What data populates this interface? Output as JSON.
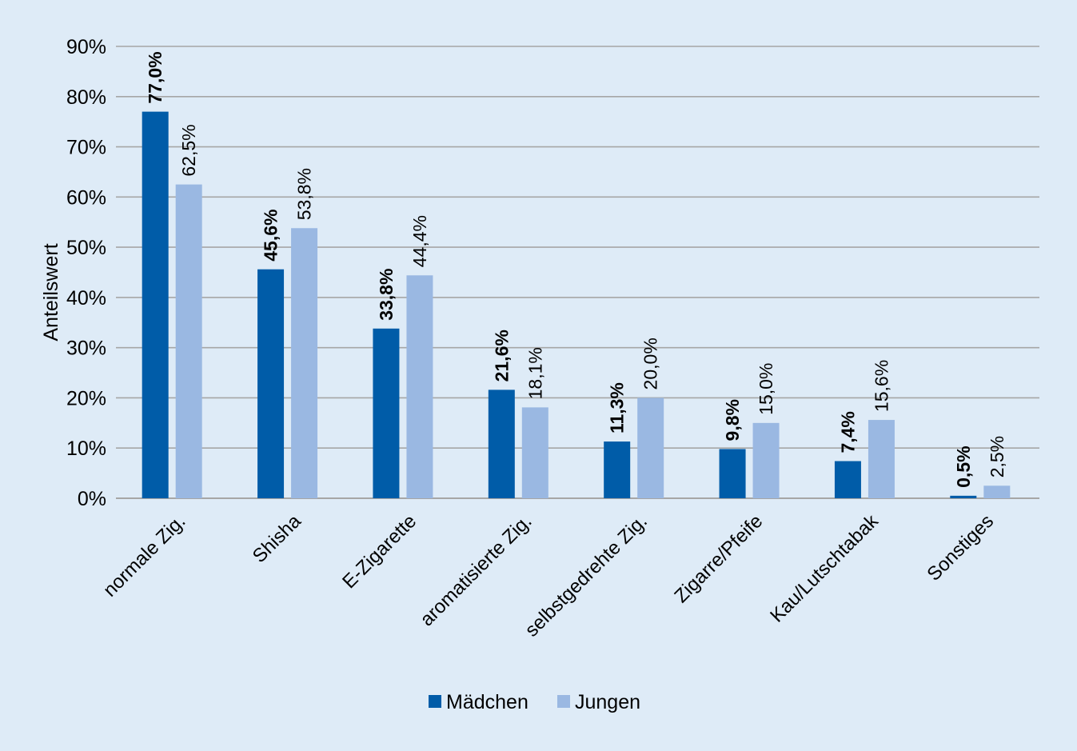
{
  "chart_data": {
    "type": "bar",
    "title": "",
    "xlabel": "",
    "ylabel": "Anteilswert",
    "ylim": [
      0,
      90
    ],
    "y_tick_labels": [
      "0%",
      "10%",
      "20%",
      "30%",
      "40%",
      "50%",
      "60%",
      "70%",
      "80%",
      "90%"
    ],
    "grid": true,
    "legend_position": "bottom",
    "categories": [
      "normale Zig.",
      "Shisha",
      "E-Zigarette",
      "aromatisierte Zig.",
      "selbstgedrehte Zig.",
      "Zigarre/Pfeife",
      "Kau/Lutschtabak",
      "Sonstiges"
    ],
    "series": [
      {
        "name": "Mädchen",
        "color": "#005ca8",
        "values": [
          77.0,
          45.6,
          33.8,
          21.6,
          11.3,
          9.8,
          7.4,
          0.5
        ],
        "labels": [
          "77,0%",
          "45,6%",
          "33,8%",
          "21,6%",
          "11,3%",
          "9,8%",
          "7,4%",
          "0,5%"
        ]
      },
      {
        "name": "Jungen",
        "color": "#9ab8e2",
        "values": [
          62.5,
          53.8,
          44.4,
          18.1,
          20.0,
          15.0,
          15.6,
          2.5
        ],
        "labels": [
          "62,5%",
          "53,8%",
          "44,4%",
          "18,1%",
          "20,0%",
          "15,0%",
          "15,6%",
          "2,5%"
        ]
      }
    ],
    "colors": {
      "background": "#deebf7",
      "gridline": "#a6a6a6"
    }
  }
}
